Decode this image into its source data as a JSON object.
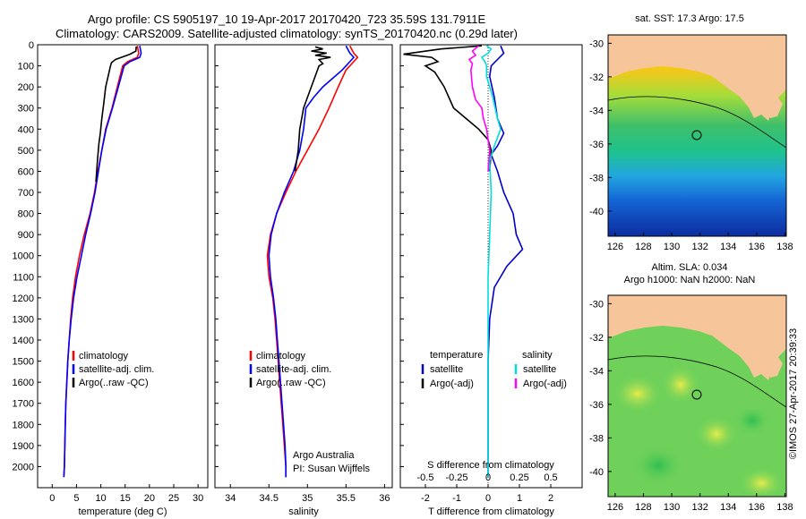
{
  "header": {
    "line1": "Argo profile: CS 5905197_10 19-Apr-2017 20170420_723 35.59S 131.7911E",
    "line2": "Climatology: CARS2009. Satellite-adjusted climatology: synTS_20170420.nc (0.29d later)"
  },
  "chart_data": [
    {
      "type": "line",
      "name": "temperature-profile",
      "xlabel": "temperature (deg C)",
      "xlim": [
        -3,
        32
      ],
      "xticks": [
        0,
        5,
        10,
        15,
        20,
        25,
        30
      ],
      "ylim": [
        0,
        2100
      ],
      "yticks": [
        0,
        100,
        200,
        300,
        400,
        500,
        600,
        700,
        800,
        900,
        1000,
        1100,
        1200,
        1300,
        1400,
        1500,
        1600,
        1700,
        1800,
        1900,
        2000
      ],
      "y_reversed": true,
      "legend": {
        "position": "lower-left",
        "entries": [
          "climatology",
          "satellite-adj. clim.",
          "Argo(..raw -QC)"
        ]
      },
      "series": [
        {
          "name": "climatology",
          "color": "#ff0000",
          "points": [
            [
              17.5,
              5
            ],
            [
              17.8,
              40
            ],
            [
              17.5,
              60
            ],
            [
              15.5,
              80
            ],
            [
              14.5,
              100
            ],
            [
              13.4,
              200
            ],
            [
              12.3,
              300
            ],
            [
              11,
              400
            ],
            [
              10.2,
              500
            ],
            [
              9.4,
              600
            ],
            [
              8.7,
              700
            ],
            [
              7.8,
              800
            ],
            [
              6.6,
              900
            ],
            [
              5.6,
              1000
            ],
            [
              4.8,
              1100
            ],
            [
              4.2,
              1200
            ],
            [
              3.8,
              1300
            ],
            [
              3.5,
              1400
            ],
            [
              3.2,
              1500
            ],
            [
              3.0,
              1600
            ],
            [
              2.8,
              1700
            ],
            [
              2.7,
              1800
            ],
            [
              2.6,
              1900
            ],
            [
              2.5,
              2000
            ],
            [
              2.4,
              2050
            ]
          ]
        },
        {
          "name": "satellite-adj. clim.",
          "color": "#0000ff",
          "points": [
            [
              18,
              5
            ],
            [
              18.3,
              40
            ],
            [
              18,
              60
            ],
            [
              16,
              80
            ],
            [
              14.8,
              100
            ],
            [
              13.6,
              200
            ],
            [
              12.4,
              300
            ],
            [
              11.1,
              400
            ],
            [
              10.2,
              500
            ],
            [
              9.5,
              600
            ],
            [
              8.8,
              700
            ],
            [
              7.9,
              800
            ],
            [
              6.9,
              900
            ],
            [
              6.0,
              1000
            ],
            [
              5.1,
              1100
            ],
            [
              4.4,
              1200
            ],
            [
              3.9,
              1300
            ],
            [
              3.5,
              1400
            ],
            [
              3.2,
              1500
            ],
            [
              3.0,
              1600
            ],
            [
              2.8,
              1700
            ],
            [
              2.7,
              1800
            ],
            [
              2.6,
              1900
            ],
            [
              2.5,
              2000
            ],
            [
              2.4,
              2050
            ]
          ]
        },
        {
          "name": "Argo(..raw -QC)",
          "color": "#000000",
          "points": [
            [
              17.3,
              8
            ],
            [
              17.2,
              30
            ],
            [
              16,
              45
            ],
            [
              14.8,
              55
            ],
            [
              13,
              70
            ],
            [
              12.2,
              85
            ],
            [
              12,
              100
            ],
            [
              11.5,
              150
            ],
            [
              11,
              200
            ],
            [
              10.6,
              280
            ],
            [
              10.2,
              350
            ],
            [
              9.9,
              420
            ],
            [
              9.6,
              470
            ],
            [
              9.3,
              550
            ],
            [
              9,
              650
            ]
          ]
        }
      ]
    },
    {
      "type": "line",
      "name": "salinity-profile",
      "xlabel": "salinity",
      "xlim": [
        33.8,
        36.1
      ],
      "xticks": [
        34,
        34.5,
        35,
        35.5,
        36
      ],
      "ylim": [
        0,
        2100
      ],
      "y_reversed": true,
      "legend": {
        "position": "lower-left",
        "entries": [
          "climatology",
          "satellite-adj. clim.",
          "Argo(..raw -QC)"
        ]
      },
      "annotations": [
        "Argo Australia",
        "PI: Susan Wijffels"
      ],
      "series": [
        {
          "name": "climatology",
          "color": "#ff0000",
          "points": [
            [
              35.55,
              5
            ],
            [
              35.6,
              40
            ],
            [
              35.65,
              60
            ],
            [
              35.6,
              80
            ],
            [
              35.5,
              120
            ],
            [
              35.4,
              200
            ],
            [
              35.28,
              300
            ],
            [
              35.15,
              400
            ],
            [
              35.0,
              500
            ],
            [
              34.85,
              600
            ],
            [
              34.72,
              700
            ],
            [
              34.6,
              800
            ],
            [
              34.52,
              900
            ],
            [
              34.48,
              1000
            ],
            [
              34.5,
              1100
            ],
            [
              34.55,
              1200
            ],
            [
              34.58,
              1300
            ],
            [
              34.6,
              1400
            ],
            [
              34.62,
              1500
            ],
            [
              34.64,
              1600
            ],
            [
              34.66,
              1700
            ],
            [
              34.68,
              1800
            ],
            [
              34.7,
              1900
            ],
            [
              34.72,
              2000
            ],
            [
              34.72,
              2050
            ]
          ]
        },
        {
          "name": "satellite-adj. clim.",
          "color": "#0000ff",
          "points": [
            [
              35.5,
              5
            ],
            [
              35.55,
              40
            ],
            [
              35.6,
              60
            ],
            [
              35.55,
              80
            ],
            [
              35.45,
              120
            ],
            [
              35.2,
              200
            ],
            [
              35.08,
              250
            ],
            [
              34.98,
              300
            ],
            [
              34.95,
              400
            ],
            [
              34.9,
              500
            ],
            [
              34.82,
              600
            ],
            [
              34.7,
              700
            ],
            [
              34.6,
              800
            ],
            [
              34.53,
              900
            ],
            [
              34.5,
              1000
            ],
            [
              34.52,
              1100
            ],
            [
              34.56,
              1200
            ],
            [
              34.59,
              1300
            ],
            [
              34.61,
              1400
            ],
            [
              34.63,
              1500
            ],
            [
              34.65,
              1600
            ],
            [
              34.67,
              1700
            ],
            [
              34.69,
              1800
            ],
            [
              34.71,
              1900
            ],
            [
              34.72,
              2000
            ],
            [
              34.72,
              2050
            ]
          ]
        },
        {
          "name": "Argo(..raw -QC)",
          "color": "#000000",
          "points": [
            [
              35.1,
              10
            ],
            [
              35.2,
              20
            ],
            [
              35.05,
              30
            ],
            [
              35.25,
              40
            ],
            [
              35.1,
              50
            ],
            [
              35.3,
              60
            ],
            [
              35.15,
              70
            ],
            [
              35.2,
              90
            ],
            [
              35.15,
              100
            ],
            [
              35.1,
              150
            ],
            [
              35.05,
              200
            ],
            [
              35.0,
              250
            ],
            [
              34.95,
              300
            ],
            [
              34.9,
              400
            ],
            [
              34.88,
              500
            ],
            [
              34.84,
              600
            ]
          ]
        }
      ]
    },
    {
      "type": "line",
      "name": "difference-profile",
      "xlabel": "T difference from climatology",
      "xlim": [
        -2.8,
        3.0
      ],
      "xticks": [
        -2,
        -1,
        0,
        1,
        2
      ],
      "x2label": "S difference from climatology",
      "x2ticks": [
        "-0.5",
        "-0.25",
        "0",
        "0.25",
        "0.5"
      ],
      "ylim": [
        0,
        2100
      ],
      "y_reversed": true,
      "legend": {
        "position": "lower-center",
        "group1": "temperature",
        "group2": "salinity",
        "entries": [
          "satellite",
          "Argo(-adj)",
          "satellite",
          "Argo(-adj)"
        ]
      },
      "series": [
        {
          "name": "temperature satellite",
          "color": "#0000cc",
          "points": [
            [
              0.4,
              5
            ],
            [
              0.5,
              40
            ],
            [
              0.3,
              70
            ],
            [
              0.1,
              100
            ],
            [
              0.05,
              150
            ],
            [
              0.2,
              250
            ],
            [
              0.3,
              350
            ],
            [
              0.5,
              420
            ],
            [
              0.3,
              480
            ],
            [
              0.1,
              520
            ],
            [
              0.2,
              560
            ],
            [
              0.3,
              600
            ],
            [
              0.5,
              700
            ],
            [
              0.8,
              800
            ],
            [
              0.9,
              900
            ],
            [
              1.1,
              970
            ],
            [
              0.6,
              1050
            ],
            [
              0.2,
              1150
            ],
            [
              0.05,
              1300
            ],
            [
              0.0,
              1500
            ],
            [
              0.0,
              2050
            ]
          ]
        },
        {
          "name": "temperature Argo(-adj)",
          "color": "#000000",
          "points": [
            [
              -0.2,
              5
            ],
            [
              -1.5,
              20
            ],
            [
              -2.7,
              45
            ],
            [
              -1.8,
              60
            ],
            [
              -1.6,
              80
            ],
            [
              -2.0,
              100
            ],
            [
              -1.7,
              130
            ],
            [
              -1.4,
              200
            ],
            [
              -1.1,
              300
            ],
            [
              -0.7,
              350
            ],
            [
              -0.3,
              400
            ],
            [
              0.0,
              450
            ],
            [
              0.1,
              500
            ],
            [
              0.05,
              600
            ]
          ]
        },
        {
          "name": "salinity satellite",
          "color": "#00dddd",
          "points": [
            [
              -0.05,
              5
            ],
            [
              0.1,
              20
            ],
            [
              0.0,
              40
            ],
            [
              -0.2,
              60
            ],
            [
              -0.1,
              80
            ],
            [
              -0.05,
              100
            ],
            [
              -0.05,
              150
            ],
            [
              0.15,
              250
            ],
            [
              0.3,
              350
            ],
            [
              0.4,
              400
            ],
            [
              0.2,
              480
            ],
            [
              0.05,
              550
            ],
            [
              0.1,
              700
            ],
            [
              0.05,
              900
            ],
            [
              0.0,
              1100
            ],
            [
              0.0,
              2050
            ]
          ]
        },
        {
          "name": "salinity Argo(-adj)",
          "color": "#ff00ff",
          "points": [
            [
              -0.3,
              5
            ],
            [
              -0.5,
              30
            ],
            [
              -0.4,
              50
            ],
            [
              -0.6,
              70
            ],
            [
              -0.5,
              90
            ],
            [
              -0.55,
              120
            ],
            [
              -0.5,
              200
            ],
            [
              -0.4,
              260
            ],
            [
              -0.2,
              300
            ],
            [
              -0.15,
              350
            ],
            [
              -0.05,
              400
            ],
            [
              0.0,
              450
            ],
            [
              0.05,
              500
            ],
            [
              0.0,
              600
            ]
          ]
        }
      ]
    }
  ],
  "maps": [
    {
      "name": "sst-map",
      "title": "sat. SST: 17.3 Argo: 17.5",
      "xticks": [
        "126",
        "128",
        "130",
        "132",
        "134",
        "136",
        "138"
      ],
      "yticks": [
        "-30",
        "-32",
        "-34",
        "-36",
        "-38",
        "-40"
      ],
      "xlim": [
        125.5,
        138.1
      ],
      "ylim": [
        -41.5,
        -29.5
      ],
      "marker_lon": 131.79,
      "marker_lat": -35.59
    },
    {
      "name": "sla-map",
      "title": "Altim. SLA: 0.034",
      "subtitle": "Argo h1000: NaN h2000: NaN",
      "xticks": [
        "126",
        "128",
        "130",
        "132",
        "134",
        "136",
        "138"
      ],
      "yticks": [
        "-30",
        "-32",
        "-34",
        "-36",
        "-38",
        "-40"
      ],
      "xlim": [
        125.5,
        138.1
      ],
      "ylim": [
        -41.5,
        -29.5
      ],
      "marker_lon": 131.79,
      "marker_lat": -35.59
    }
  ],
  "footer": {
    "credit": "©IMOS 27-Apr-2017 20:39:33"
  },
  "colors": {
    "land": "#f7c59a"
  }
}
